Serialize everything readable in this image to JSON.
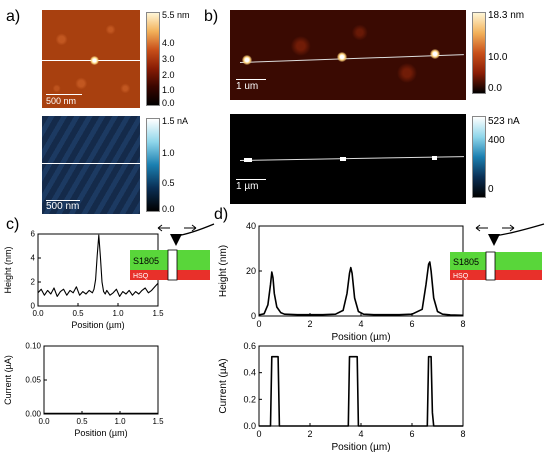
{
  "panel_labels": {
    "a": "a)",
    "b": "b)",
    "c": "c)",
    "d": "d)"
  },
  "images": {
    "a_top": {
      "scale_bar": "500 nm",
      "colorbar": {
        "ticks": [
          "5.5 nm",
          "4.0",
          "3.0",
          "2.0",
          "1.0",
          "0.0"
        ],
        "colors": [
          "#fff6d6",
          "#f2b15a",
          "#c8501a",
          "#8a1d05",
          "#3a0600",
          "#000000"
        ]
      }
    },
    "a_bottom": {
      "scale_bar": "500 nm",
      "colorbar": {
        "ticks": [
          "1.5 nA",
          "1.0",
          "0.5",
          "0.0"
        ],
        "colors": [
          "#ffffff",
          "#8fd6ea",
          "#1b7fb0",
          "#0a2f55",
          "#000000"
        ]
      }
    },
    "b_top": {
      "scale_bar": "1 um",
      "colorbar": {
        "ticks": [
          "18.3 nm",
          "10.0",
          "0.0"
        ],
        "colors": [
          "#fff6d6",
          "#f2b15a",
          "#c8501a",
          "#8a1d05",
          "#000000"
        ]
      }
    },
    "b_bottom": {
      "scale_bar": "1 µm",
      "colorbar": {
        "ticks": [
          "523 nA",
          "400",
          "0"
        ],
        "colors": [
          "#ffffff",
          "#8fd6ea",
          "#1b7fb0",
          "#0a2f55",
          "#000000"
        ]
      }
    }
  },
  "schematics": {
    "c": {
      "top_layer": "S1805",
      "bottom_layer": "HSQ",
      "top_color": "#59d63a",
      "bottom_color": "#e8302a"
    },
    "d": {
      "top_layer": "S1805",
      "bottom_layer": "HSQ",
      "top_color": "#59d63a",
      "bottom_color": "#e8302a"
    }
  },
  "chart_data": [
    {
      "id": "c-height",
      "type": "line",
      "xlabel": "Position (µm)",
      "ylabel": "Height (nm)",
      "xlim": [
        0,
        1.5
      ],
      "ylim": [
        0,
        6
      ],
      "xticks": [
        "0.0",
        "0.5",
        "1.0",
        "1.5"
      ],
      "yticks": [
        "0",
        "2",
        "4",
        "6"
      ],
      "series": [
        {
          "x": [
            0,
            0.04,
            0.08,
            0.12,
            0.16,
            0.2,
            0.24,
            0.28,
            0.32,
            0.36,
            0.4,
            0.44,
            0.48,
            0.52,
            0.56,
            0.6,
            0.64,
            0.68,
            0.7,
            0.72,
            0.74,
            0.76,
            0.78,
            0.8,
            0.82,
            0.84,
            0.86,
            0.9,
            0.94,
            0.98,
            1.02,
            1.06,
            1.1,
            1.14,
            1.18,
            1.22,
            1.26,
            1.3,
            1.34,
            1.38,
            1.42,
            1.46,
            1.5
          ],
          "y": [
            1.1,
            1.4,
            0.9,
            1.3,
            1.0,
            1.5,
            0.8,
            1.2,
            1.4,
            0.9,
            1.3,
            1.1,
            1.6,
            0.9,
            1.2,
            1.0,
            1.3,
            1.1,
            1.4,
            2.2,
            4.2,
            5.9,
            4.1,
            2.0,
            1.2,
            1.0,
            1.3,
            0.9,
            1.1,
            1.4,
            0.8,
            1.2,
            1.0,
            1.3,
            0.9,
            1.2,
            1.0,
            1.3,
            1.5,
            1.1,
            1.3,
            1.6,
            1.9
          ]
        }
      ]
    },
    {
      "id": "c-current",
      "type": "line",
      "xlabel": "Position (µm)",
      "ylabel": "Current (µA)",
      "xlim": [
        0,
        1.5
      ],
      "ylim": [
        0,
        0.1
      ],
      "xticks": [
        "0.0",
        "0.5",
        "1.0",
        "1.5"
      ],
      "yticks": [
        "0.00",
        "0.05",
        "0.10"
      ],
      "series": [
        {
          "x": [
            0,
            0.3,
            0.6,
            0.9,
            1.2,
            1.5
          ],
          "y": [
            0.001,
            0.001,
            0.001,
            0.001,
            0.001,
            0.001
          ]
        }
      ]
    },
    {
      "id": "d-height",
      "type": "line",
      "xlabel": "Position (µm)",
      "ylabel": "Height (nm)",
      "xlim": [
        0,
        8
      ],
      "ylim": [
        0,
        40
      ],
      "xticks": [
        "0",
        "2",
        "4",
        "6",
        "8"
      ],
      "yticks": [
        "0",
        "20",
        "40"
      ],
      "series": [
        {
          "x": [
            0,
            0.2,
            0.35,
            0.45,
            0.5,
            0.55,
            0.6,
            0.7,
            0.85,
            1.0,
            1.5,
            2.0,
            2.5,
            3.0,
            3.3,
            3.45,
            3.55,
            3.6,
            3.65,
            3.75,
            3.9,
            4.1,
            4.5,
            5.0,
            5.5,
            6.0,
            6.4,
            6.55,
            6.65,
            6.7,
            6.75,
            6.85,
            7.0,
            7.2,
            7.5,
            8.0
          ],
          "y": [
            0.5,
            1.0,
            5.0,
            14.0,
            19.5,
            17.0,
            10.0,
            4.0,
            1.5,
            0.8,
            0.6,
            0.6,
            0.6,
            0.8,
            2.5,
            10.0,
            19.0,
            21.5,
            19.0,
            8.0,
            2.0,
            0.8,
            0.6,
            0.6,
            0.6,
            0.8,
            3.0,
            14.0,
            23.0,
            24.0,
            20.0,
            8.0,
            2.0,
            0.8,
            0.5,
            0.3
          ]
        }
      ]
    },
    {
      "id": "d-current",
      "type": "line",
      "xlabel": "Position (µm)",
      "ylabel": "Current (µA)",
      "xlim": [
        0,
        8
      ],
      "ylim": [
        0,
        0.6
      ],
      "xticks": [
        "0",
        "2",
        "4",
        "6",
        "8"
      ],
      "yticks": [
        "0.0",
        "0.2",
        "0.4",
        "0.6"
      ],
      "series": [
        {
          "x": [
            0,
            0.45,
            0.5,
            0.6,
            0.75,
            0.8,
            3.5,
            3.55,
            3.85,
            3.9,
            6.6,
            6.65,
            6.75,
            6.8,
            6.85,
            8.0
          ],
          "y": [
            0,
            0,
            0.52,
            0.52,
            0.52,
            0,
            0,
            0.52,
            0.52,
            0,
            0,
            0.52,
            0.52,
            0.1,
            0,
            0
          ]
        }
      ]
    }
  ]
}
